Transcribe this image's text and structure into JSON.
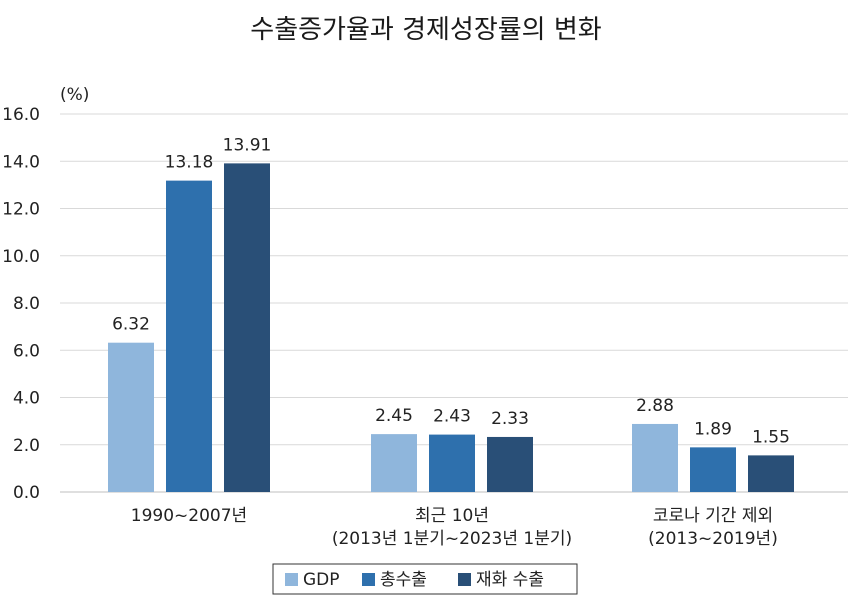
{
  "chart_data": {
    "type": "bar",
    "title": "수출증가율과 경제성장률의 변화",
    "unit_label": "(%)",
    "ylim": [
      0,
      16
    ],
    "yticks": [
      "0.0",
      "2.0",
      "4.0",
      "6.0",
      "8.0",
      "10.0",
      "12.0",
      "14.0",
      "16.0"
    ],
    "grid": true,
    "legend_position": "bottom-center",
    "categories": [
      {
        "line1": "1990~2007년",
        "line2": ""
      },
      {
        "line1": "최근 10년",
        "line2": "(2013년 1분기~2023년 1분기)"
      },
      {
        "line1": "코로나 기간 제외",
        "line2": "(2013~2019년)"
      }
    ],
    "series": [
      {
        "name": "GDP",
        "color": "#8fb6dc",
        "values": [
          6.32,
          2.45,
          2.88
        ],
        "labels": [
          "6.32",
          "2.45",
          "2.88"
        ]
      },
      {
        "name": "총수출",
        "color": "#2e70ad",
        "values": [
          13.18,
          2.43,
          1.89
        ],
        "labels": [
          "13.18",
          "2.43",
          "1.89"
        ]
      },
      {
        "name": "재화 수출",
        "color": "#294f77",
        "values": [
          13.91,
          2.33,
          1.55
        ],
        "labels": [
          "13.91",
          "2.33",
          "1.55"
        ]
      }
    ]
  }
}
